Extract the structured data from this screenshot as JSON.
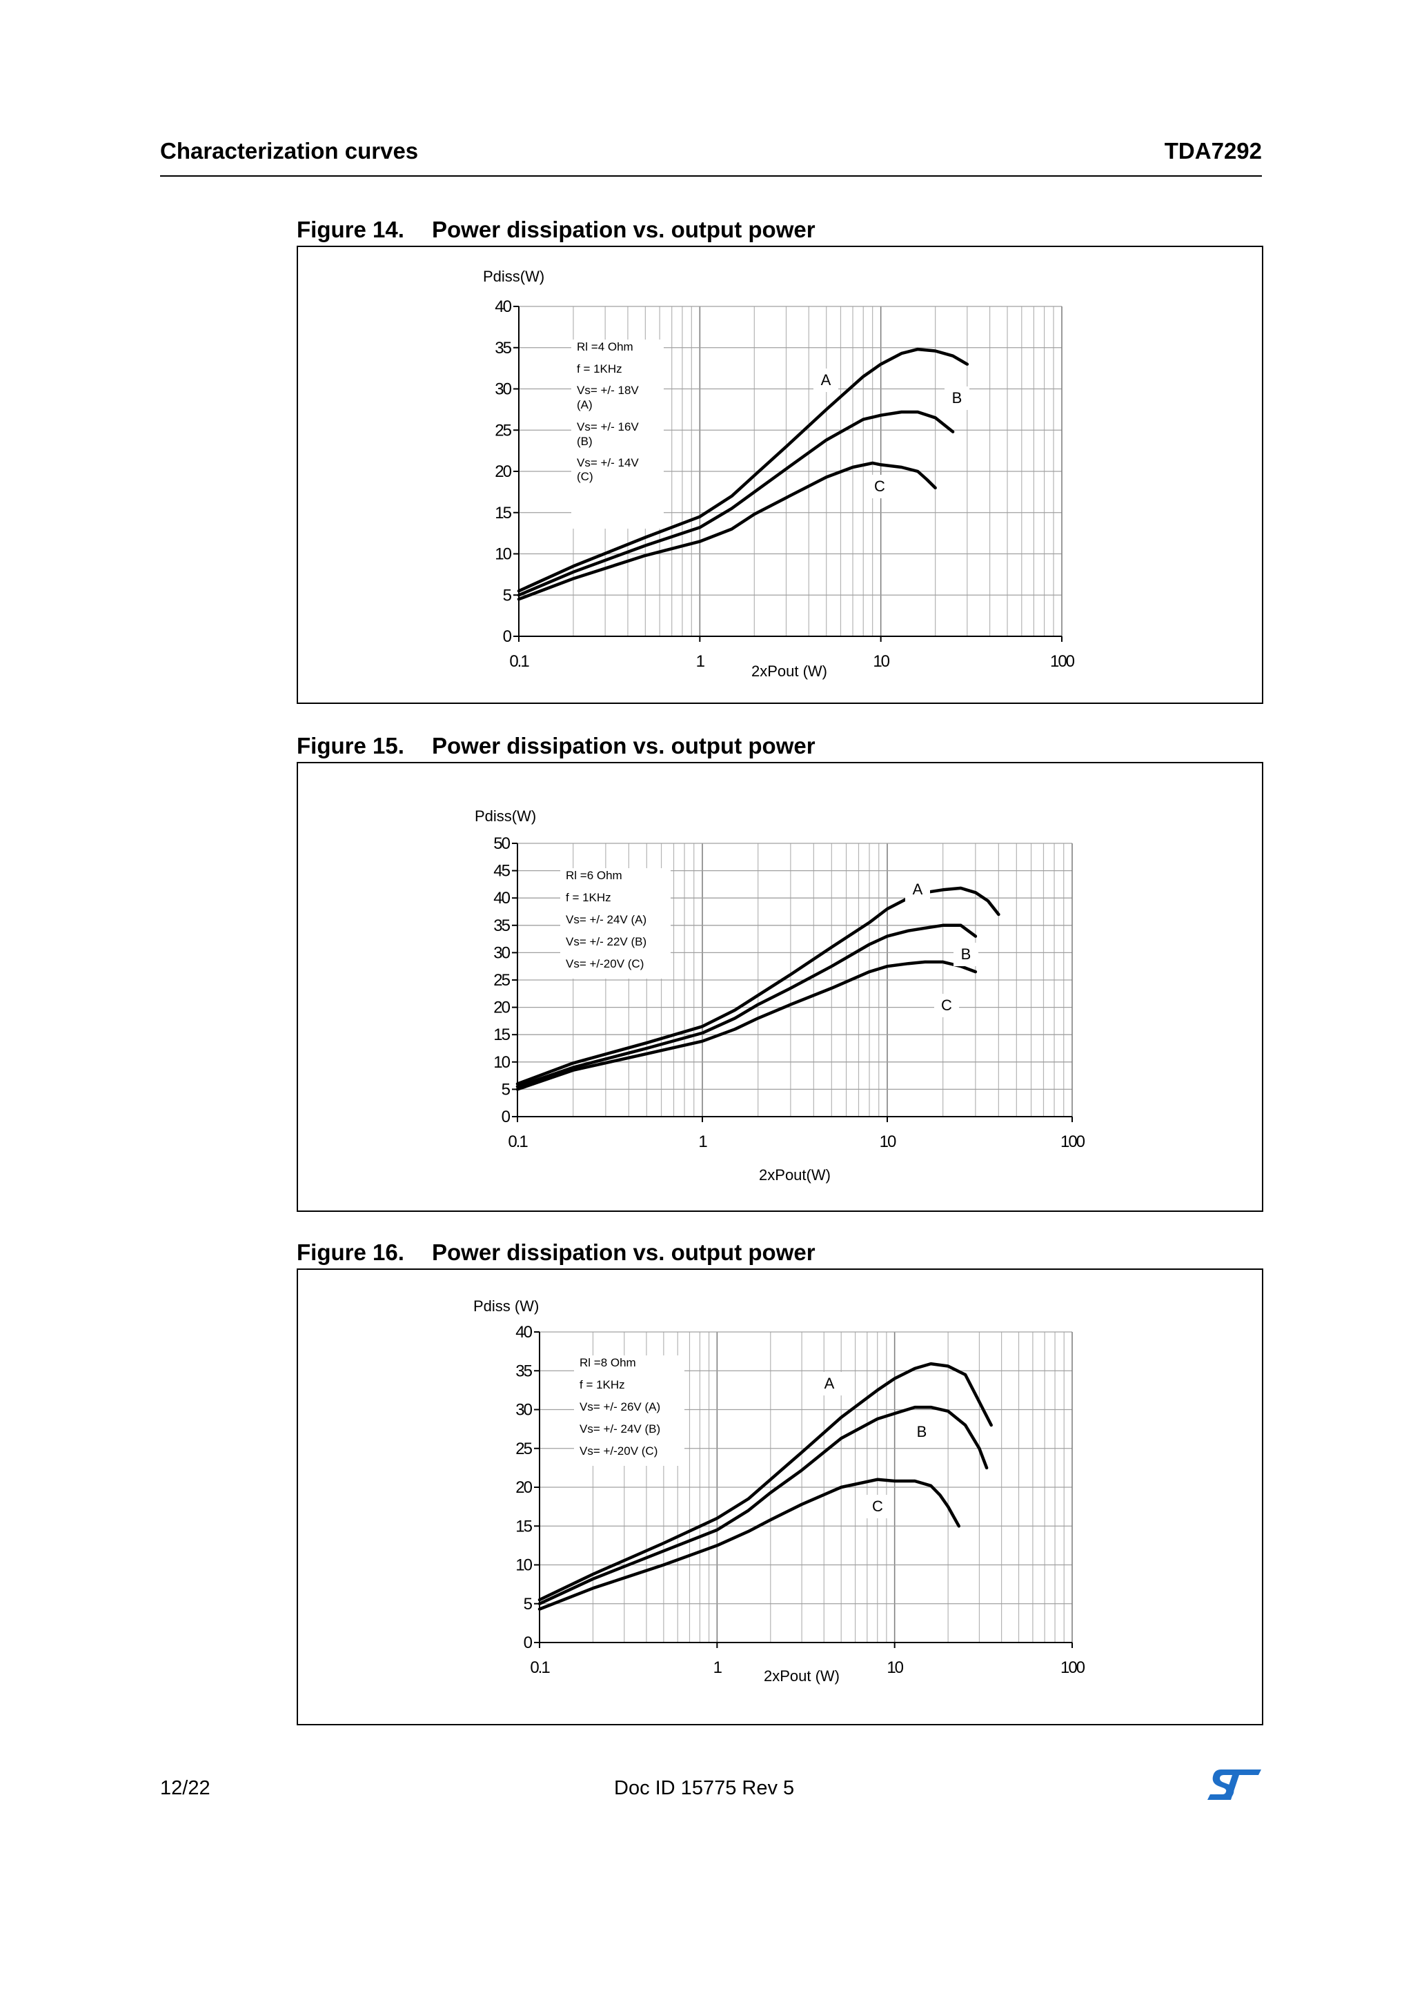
{
  "header": {
    "section": "Characterization curves",
    "part": "TDA7292"
  },
  "footer": {
    "page": "12/22",
    "doc_id": "Doc ID 15775 Rev 5"
  },
  "colors": {
    "text": "#000000",
    "grid": "#a0a0a0",
    "curve": "#000000",
    "logo": "#1e6fc8"
  },
  "figures": [
    {
      "number": "Figure 14.",
      "title": "Power dissipation vs. output power"
    },
    {
      "number": "Figure 15.",
      "title": "Power dissipation vs. output power"
    },
    {
      "number": "Figure 16.",
      "title": "Power dissipation vs. output power"
    }
  ],
  "chart_data": [
    {
      "type": "line",
      "ylabel": "Pdiss(W)",
      "xlabel": "2xPout (W)",
      "x_scale": "log",
      "xlim": [
        0.1,
        100
      ],
      "ylim": [
        0,
        40
      ],
      "x_ticks": [
        "0.1",
        "1",
        "10",
        "100"
      ],
      "y_ticks": [
        "0",
        "5",
        "10",
        "15",
        "20",
        "25",
        "30",
        "35",
        "40"
      ],
      "grid": true,
      "legend_lines": [
        "Rl =4 Ohm",
        "f = 1KHz",
        "Vs= +/- 18V",
        "(A)",
        "Vs= +/- 16V",
        "(B)",
        "Vs= +/- 14V",
        "(C)"
      ],
      "series": [
        {
          "name": "A",
          "x": [
            0.1,
            0.2,
            0.5,
            1,
            1.5,
            2,
            3,
            5,
            8,
            10,
            13,
            16,
            20,
            25,
            30
          ],
          "y": [
            5.5,
            8.5,
            12,
            14.5,
            17,
            19.5,
            23,
            27.5,
            31.5,
            33,
            34.3,
            34.8,
            34.6,
            34,
            33
          ]
        },
        {
          "name": "B",
          "x": [
            0.1,
            0.2,
            0.5,
            1,
            1.5,
            2,
            3,
            5,
            8,
            10,
            13,
            16,
            20,
            25
          ],
          "y": [
            5,
            7.8,
            11,
            13.2,
            15.5,
            17.5,
            20.3,
            23.8,
            26.3,
            26.8,
            27.2,
            27.2,
            26.5,
            24.8
          ]
        },
        {
          "name": "C",
          "x": [
            0.1,
            0.2,
            0.5,
            1,
            1.5,
            2,
            3,
            5,
            7,
            9,
            10,
            13,
            16,
            18,
            20
          ],
          "y": [
            4.5,
            7,
            9.8,
            11.5,
            13,
            14.8,
            16.8,
            19.3,
            20.5,
            21,
            20.8,
            20.5,
            20,
            19,
            18
          ]
        }
      ],
      "annotations": [
        "A",
        "B",
        "C"
      ]
    },
    {
      "type": "line",
      "ylabel": "Pdiss(W)",
      "xlabel": "2xPout(W)",
      "x_scale": "log",
      "xlim": [
        0.1,
        100
      ],
      "ylim": [
        0,
        50
      ],
      "x_ticks": [
        "0.1",
        "1",
        "10",
        "100"
      ],
      "y_ticks": [
        "0",
        "5",
        "10",
        "15",
        "20",
        "25",
        "30",
        "35",
        "40",
        "45",
        "50"
      ],
      "grid": true,
      "legend_lines": [
        "Rl =6 Ohm",
        "f = 1KHz",
        "Vs= +/- 24V (A)",
        "Vs= +/- 22V (B)",
        "Vs= +/-20V (C)"
      ],
      "series": [
        {
          "name": "A",
          "x": [
            0.1,
            0.2,
            0.5,
            1,
            1.5,
            2,
            3,
            5,
            8,
            10,
            13,
            16,
            20,
            25,
            30,
            35,
            40
          ],
          "y": [
            6,
            9.8,
            13.5,
            16.5,
            19.5,
            22.2,
            26,
            31,
            35.5,
            38,
            40,
            41,
            41.5,
            41.8,
            41,
            39.5,
            37
          ]
        },
        {
          "name": "B",
          "x": [
            0.1,
            0.2,
            0.5,
            1,
            1.5,
            2,
            3,
            5,
            8,
            10,
            13,
            16,
            20,
            25,
            30
          ],
          "y": [
            5.5,
            9,
            12.5,
            15.3,
            18,
            20.5,
            23.5,
            27.5,
            31.5,
            33,
            34,
            34.5,
            35,
            35,
            33
          ]
        },
        {
          "name": "C",
          "x": [
            0.1,
            0.2,
            0.5,
            1,
            1.5,
            2,
            3,
            5,
            8,
            10,
            13,
            16,
            20,
            25,
            30
          ],
          "y": [
            5,
            8.5,
            11.5,
            13.8,
            16,
            18,
            20.5,
            23.5,
            26.5,
            27.5,
            28,
            28.3,
            28.3,
            27.5,
            26.5
          ]
        }
      ],
      "annotations": [
        "A",
        "B",
        "C"
      ]
    },
    {
      "type": "line",
      "ylabel": "Pdiss (W)",
      "xlabel": "2xPout (W)",
      "x_scale": "log",
      "xlim": [
        0.1,
        100
      ],
      "ylim": [
        0,
        40
      ],
      "x_ticks": [
        "0.1",
        "1",
        "10",
        "100"
      ],
      "y_ticks": [
        "0",
        "5",
        "10",
        "15",
        "20",
        "25",
        "30",
        "35",
        "40"
      ],
      "grid": true,
      "legend_lines": [
        "Rl =8 Ohm",
        "f = 1KHz",
        "Vs= +/- 26V (A)",
        "Vs= +/- 24V (B)",
        "Vs= +/-20V (C)"
      ],
      "series": [
        {
          "name": "A",
          "x": [
            0.1,
            0.2,
            0.5,
            1,
            1.5,
            2,
            3,
            5,
            8,
            10,
            13,
            16,
            20,
            25,
            30,
            35
          ],
          "y": [
            5.5,
            8.8,
            12.8,
            16,
            18.5,
            21,
            24.5,
            29,
            32.5,
            34,
            35.3,
            35.9,
            35.6,
            34.5,
            31,
            28
          ]
        },
        {
          "name": "B",
          "x": [
            0.1,
            0.2,
            0.5,
            1,
            1.5,
            2,
            3,
            5,
            8,
            10,
            13,
            16,
            20,
            25,
            30,
            33
          ],
          "y": [
            5,
            8.2,
            11.8,
            14.5,
            17,
            19.3,
            22.2,
            26.3,
            28.8,
            29.5,
            30.3,
            30.3,
            29.8,
            28,
            25,
            22.5
          ]
        },
        {
          "name": "C",
          "x": [
            0.1,
            0.2,
            0.5,
            1,
            1.5,
            2,
            3,
            5,
            8,
            10,
            13,
            16,
            18,
            20,
            23
          ],
          "y": [
            4.3,
            7,
            10,
            12.5,
            14.3,
            15.8,
            17.8,
            20,
            21,
            20.8,
            20.8,
            20.2,
            19,
            17.5,
            15
          ]
        }
      ],
      "annotations": [
        "A",
        "B",
        "C"
      ]
    }
  ]
}
